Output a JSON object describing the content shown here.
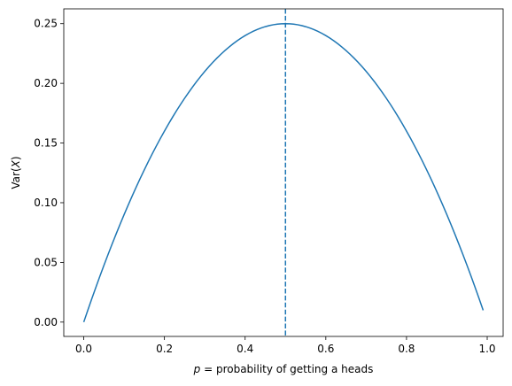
{
  "chart_data": {
    "type": "line",
    "title": "",
    "xlabel_var": "p",
    "xlabel_rest": " = probability of getting a heads",
    "ylabel_prefix": "Var(",
    "ylabel_var": "X",
    "ylabel_suffix": ")",
    "xlim": [
      -0.0495,
      1.0395
    ],
    "ylim": [
      -0.012,
      0.2624
    ],
    "xticks": [
      0.0,
      0.2,
      0.4,
      0.6,
      0.8,
      1.0
    ],
    "xtick_labels": [
      "0.0",
      "0.2",
      "0.4",
      "0.6",
      "0.8",
      "1.0"
    ],
    "yticks": [
      0.0,
      0.05,
      0.1,
      0.15,
      0.2,
      0.25
    ],
    "ytick_labels": [
      "0.00",
      "0.05",
      "0.10",
      "0.15",
      "0.20",
      "0.25"
    ],
    "grid": false,
    "series": [
      {
        "function": "p*(1-p)",
        "x_start": 0.0,
        "x_end": 0.99,
        "x_step": 0.01,
        "color": "#1f77b4",
        "style": "solid"
      }
    ],
    "vline": {
      "x": 0.5,
      "color": "#1f77b4",
      "style": "dashed"
    }
  }
}
